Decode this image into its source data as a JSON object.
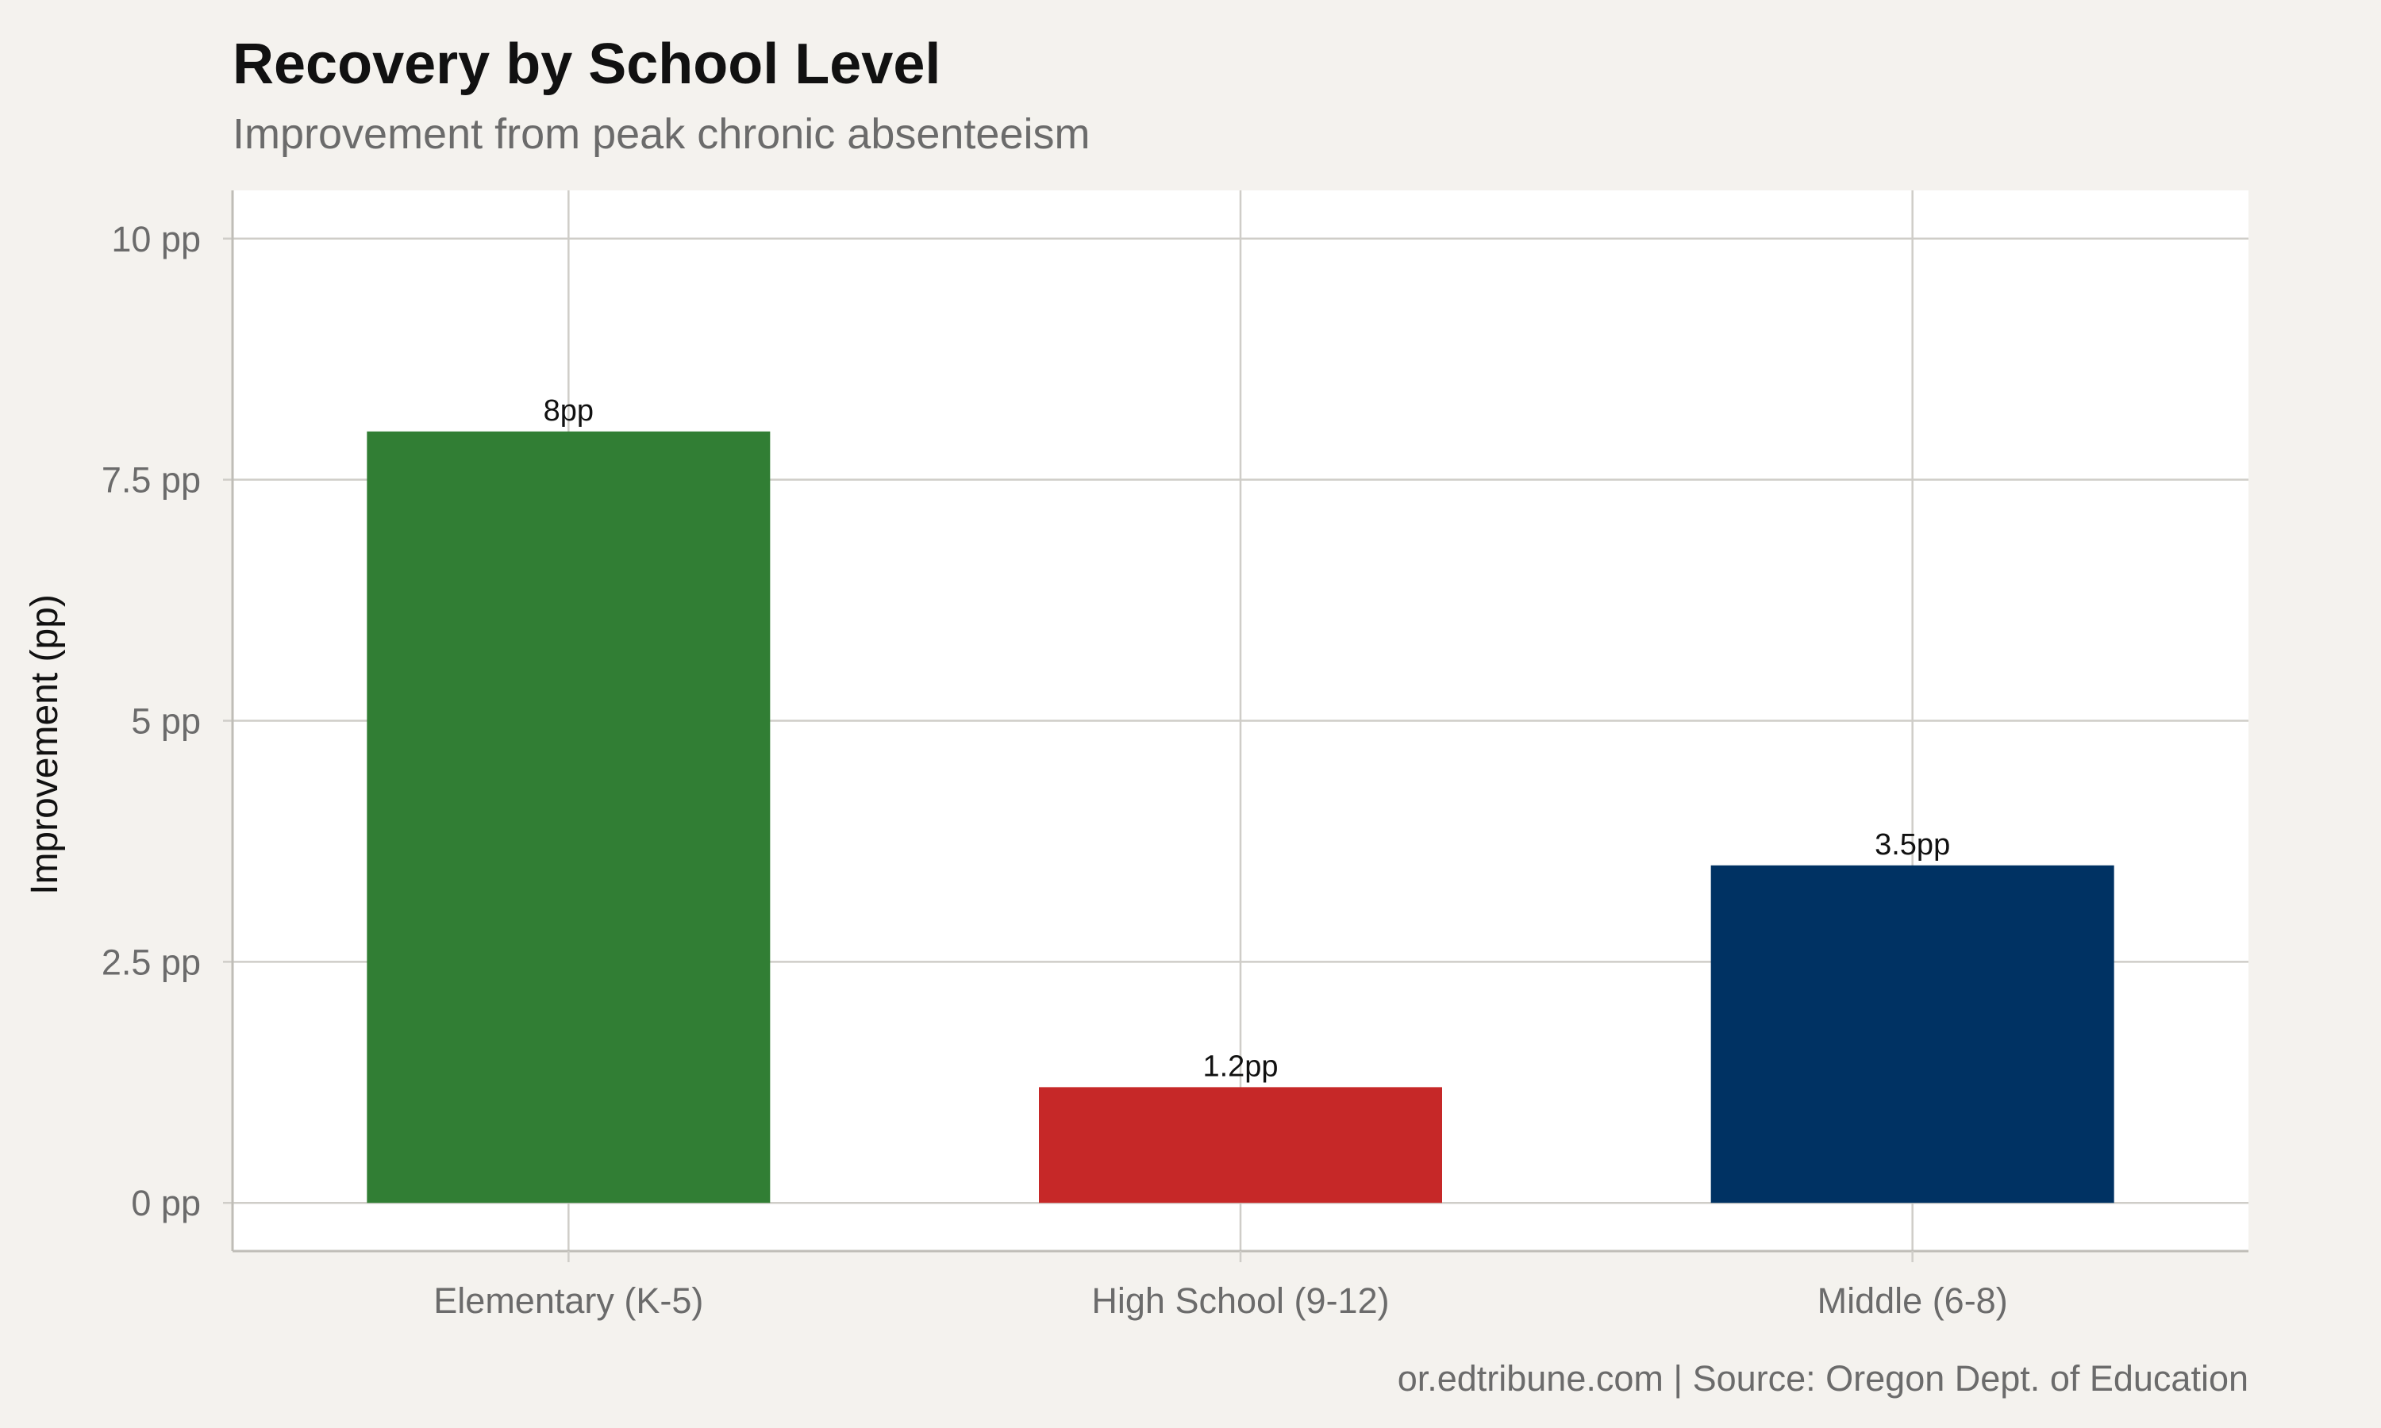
{
  "chart_data": {
    "type": "bar",
    "title": "Recovery by School Level",
    "subtitle": "Improvement from peak chronic absenteeism",
    "xlabel": "",
    "ylabel": "Improvement (pp)",
    "categories": [
      "Elementary (K-5)",
      "High School (9-12)",
      "Middle (6-8)"
    ],
    "values": [
      8,
      1.2,
      3.5
    ],
    "data_labels": [
      "8pp",
      "1.2pp",
      "3.5pp"
    ],
    "colors": [
      "#317e34",
      "#c62828",
      "#003263"
    ],
    "ylim": [
      -0.5,
      10.5
    ],
    "yticks": [
      0,
      2.5,
      5,
      7.5,
      10
    ],
    "ytick_labels": [
      "0 pp",
      "2.5 pp",
      "5 pp",
      "7.5 pp",
      "10 pp"
    ],
    "grid": true,
    "legend": "none",
    "caption": "or.edtribune.com | Source: Oregon Dept. of Education"
  }
}
